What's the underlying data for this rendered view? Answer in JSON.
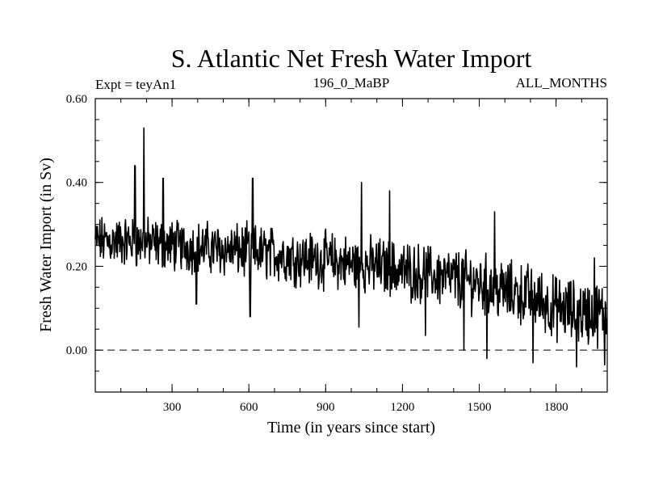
{
  "chart_data": {
    "type": "line",
    "title": "S. Atlantic Net Fresh Water Import",
    "subtitle_left": "Expt = teyAn1",
    "subtitle_center": "196_0_MaBP",
    "subtitle_right": "ALL_MONTHS",
    "xlabel": "Time (in years since start)",
    "ylabel": "Fresh Water Import (in Sv)",
    "xlim": [
      0,
      2000
    ],
    "ylim": [
      -0.1,
      0.6
    ],
    "x_ticks": [
      300,
      600,
      900,
      1200,
      1500,
      1800
    ],
    "x_tick_labels": [
      "300",
      "600",
      "900",
      "1200",
      "1500",
      "1800"
    ],
    "y_ticks": [
      0.0,
      0.2,
      0.4,
      0.6
    ],
    "y_tick_labels": [
      "0.00",
      "0.20",
      "0.40",
      "0.60"
    ],
    "reference_line": {
      "y": 0.0,
      "style": "dashed"
    },
    "series": [
      {
        "name": "Net Fresh Water Import",
        "trend_anchors": {
          "x": [
            0,
            100,
            200,
            300,
            400,
            500,
            600,
            700,
            800,
            900,
            1000,
            1100,
            1200,
            1300,
            1400,
            1500,
            1600,
            1700,
            1800,
            1900,
            2000
          ],
          "y": [
            0.26,
            0.26,
            0.255,
            0.25,
            0.245,
            0.24,
            0.235,
            0.23,
            0.22,
            0.215,
            0.205,
            0.2,
            0.19,
            0.18,
            0.17,
            0.16,
            0.14,
            0.13,
            0.1,
            0.09,
            0.085
          ]
        },
        "spikes": [
          {
            "x": 190,
            "y": 0.53
          },
          {
            "x": 155,
            "y": 0.44
          },
          {
            "x": 265,
            "y": 0.41
          },
          {
            "x": 615,
            "y": 0.41
          },
          {
            "x": 1040,
            "y": 0.4
          },
          {
            "x": 1150,
            "y": 0.38
          },
          {
            "x": 1560,
            "y": 0.33
          },
          {
            "x": 1950,
            "y": 0.22
          },
          {
            "x": 1440,
            "y": 0.0
          },
          {
            "x": 1530,
            "y": -0.02
          },
          {
            "x": 1710,
            "y": -0.03
          },
          {
            "x": 1880,
            "y": -0.04
          },
          {
            "x": 1990,
            "y": -0.035
          },
          {
            "x": 1290,
            "y": 0.035
          },
          {
            "x": 1030,
            "y": 0.055
          },
          {
            "x": 605,
            "y": 0.08
          },
          {
            "x": 395,
            "y": 0.11
          }
        ],
        "sampling_step_years": 2
      }
    ]
  }
}
